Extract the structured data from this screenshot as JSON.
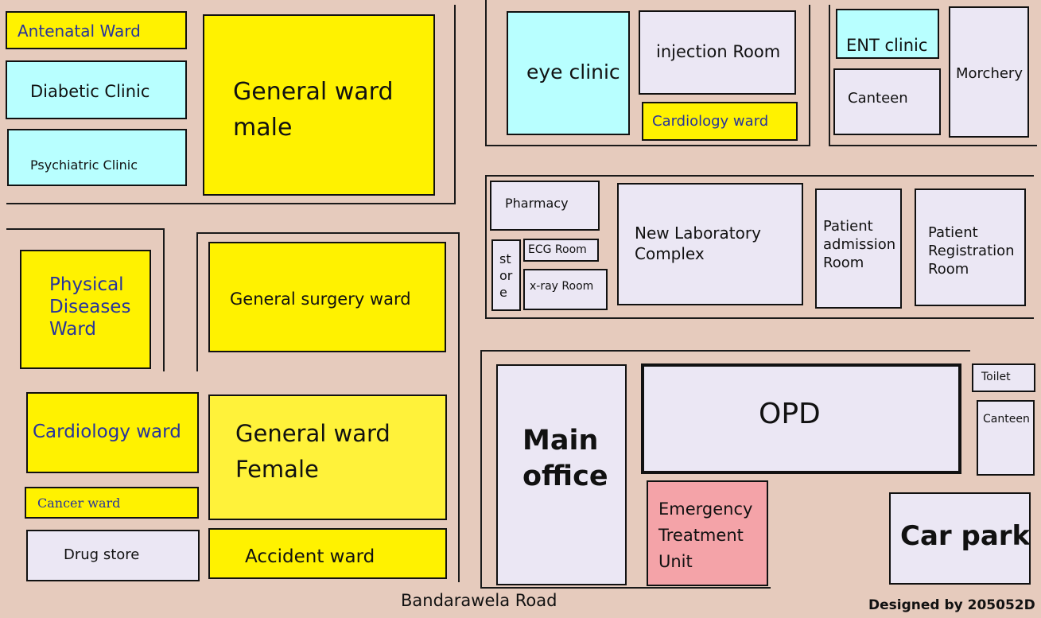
{
  "map": {
    "road_label": "Bandarawela Road",
    "designer_label": "Designed by 205052D",
    "rooms": {
      "antenatal_ward": "Antenatal Ward",
      "diabetic_clinic": "Diabetic Clinic",
      "psychiatric_clinic": "Psychiatric Clinic",
      "general_ward_male": "General ward\nmale",
      "eye_clinic": "eye clinic",
      "injection_room": "injection Room",
      "cardiology_ward_top": "Cardiology ward",
      "ent_clinic": "ENT clinic",
      "canteen_top": "Canteen",
      "morchery": "Morchery",
      "physical_diseases_ward": "Physical\nDiseases\nWard",
      "general_surgery_ward": "General surgery ward",
      "pharmacy": "Pharmacy",
      "store": "st\nor\ne",
      "ecg_room": "ECG Room",
      "xray_room": "x-ray Room",
      "new_laboratory_complex": "New Laboratory\nComplex",
      "patient_admission_room": "Patient\nadmission\nRoom",
      "patient_registration_room": "Patient\nRegistration\nRoom",
      "cardiology_ward_left": "Cardiology ward",
      "general_ward_female": "General ward\nFemale",
      "cancer_ward": "Cancer ward",
      "drug_store": "Drug store",
      "accident_ward": "Accident ward",
      "main_office": "Main\noffice",
      "opd": "OPD",
      "emergency_treatment_unit": "Emergency\nTreatment\nUnit",
      "toilet": "Toilet",
      "canteen_right": "Canteen",
      "car_park": "Car park"
    },
    "colors": {
      "ground": "#e6cbbd",
      "ward": "#fff200",
      "clinic": "#b8ffff",
      "facility": "#ebe7f4",
      "emergency": "#f4a3a8"
    }
  }
}
